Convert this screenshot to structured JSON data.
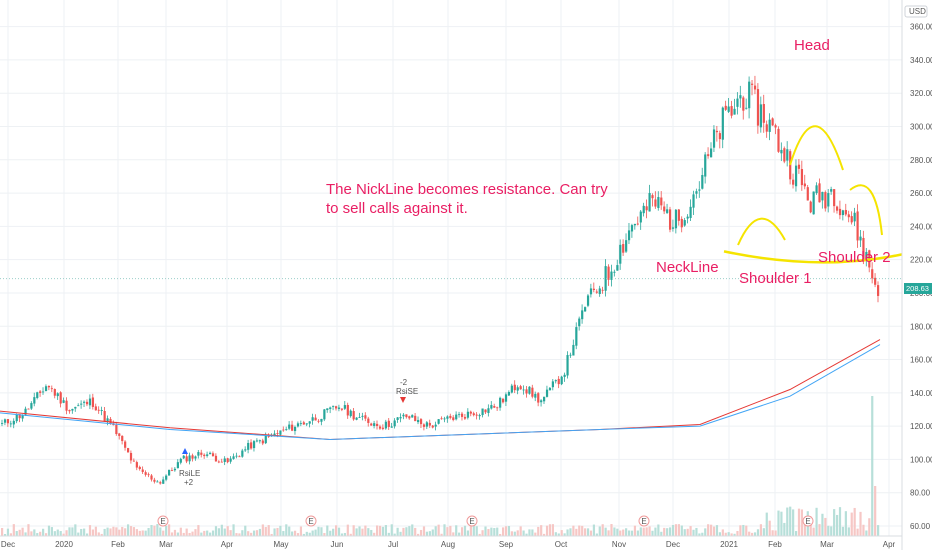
{
  "currency_label": "USD",
  "last_price_label": "208.63",
  "colors": {
    "up": "#26a69a",
    "down": "#ef5350",
    "annotation": "#e91e63",
    "pattern": "#f5e400",
    "ma_fast": "#e53935",
    "ma_slow": "#42a5f5",
    "grid": "#eef1f4"
  },
  "annotations": {
    "note_line1": "The NickLine becomes resistance.  Can try",
    "note_line2": "to sell calls against it.",
    "head": "Head",
    "neckline": "NeckLine",
    "shoulder1": "Shoulder 1",
    "shoulder2": "Shoulder 2"
  },
  "signals": {
    "long_label": "RsiLE",
    "long_qty": "+2",
    "short_qty": "-2",
    "short_label": "RsiSE"
  },
  "earnings_marker": "E",
  "chart_data": {
    "type": "candlestick",
    "yticks": [
      60,
      80,
      100,
      120,
      140,
      160,
      180,
      200,
      220,
      240,
      260,
      280,
      300,
      320,
      340,
      360
    ],
    "ylim": [
      54,
      376
    ],
    "xlabels": [
      "Dec",
      "2020",
      "Feb",
      "Mar",
      "Apr",
      "May",
      "Jun",
      "Jul",
      "Aug",
      "Sep",
      "Oct",
      "Nov",
      "Dec",
      "2021",
      "Feb",
      "Mar",
      "Apr"
    ],
    "last_price": 208.63,
    "series": [
      {
        "name": "Price",
        "points": [
          [
            "Dec",
            121
          ],
          [
            "2020",
            128
          ],
          [
            "Jan",
            145
          ],
          [
            "Feb",
            130
          ],
          [
            "Feb",
            135
          ],
          [
            "Mar",
            118
          ],
          [
            "Mar",
            94
          ],
          [
            "Mar",
            86
          ],
          [
            "Apr",
            100
          ],
          [
            "Apr",
            104
          ],
          [
            "May",
            98
          ],
          [
            "May",
            108
          ],
          [
            "Jun",
            114
          ],
          [
            "Jun",
            120
          ],
          [
            "Jul",
            125
          ],
          [
            "Jul",
            132
          ],
          [
            "Jul",
            124
          ],
          [
            "Aug",
            120
          ],
          [
            "Aug",
            126
          ],
          [
            "Sep",
            120
          ],
          [
            "Sep",
            125
          ],
          [
            "Oct",
            128
          ],
          [
            "Oct",
            132
          ],
          [
            "Nov",
            146
          ],
          [
            "Nov",
            135
          ],
          [
            "Dec",
            152
          ],
          [
            "Dec",
            195
          ],
          [
            "Jan",
            212
          ],
          [
            "Jan",
            240
          ],
          [
            "Jan",
            255
          ],
          [
            "Feb",
            242
          ],
          [
            "Feb",
            265
          ],
          [
            "Feb",
            300
          ],
          [
            "Feb",
            320
          ],
          [
            "Mar",
            305
          ],
          [
            "Mar",
            280
          ],
          [
            "Mar",
            255
          ],
          [
            "Mar",
            262
          ],
          [
            "Mar",
            240
          ],
          [
            "Mar",
            200
          ]
        ]
      },
      {
        "name": "MA fast",
        "points": [
          [
            "Dec",
            129
          ],
          [
            "Mar",
            119
          ],
          [
            "Jun",
            112
          ],
          [
            "Oct",
            118
          ],
          [
            "Dec",
            121
          ],
          [
            "Feb",
            142
          ],
          [
            "Apr",
            172
          ]
        ]
      },
      {
        "name": "MA slow",
        "points": [
          [
            "Dec",
            128
          ],
          [
            "Mar",
            118
          ],
          [
            "Jun",
            112
          ],
          [
            "Oct",
            118
          ],
          [
            "Dec",
            120
          ],
          [
            "Feb",
            138
          ],
          [
            "Apr",
            169
          ]
        ]
      }
    ],
    "neckline_level": 220,
    "earnings_dates": [
      "Jan",
      "May",
      "Aug",
      "Nov",
      "Feb"
    ]
  }
}
